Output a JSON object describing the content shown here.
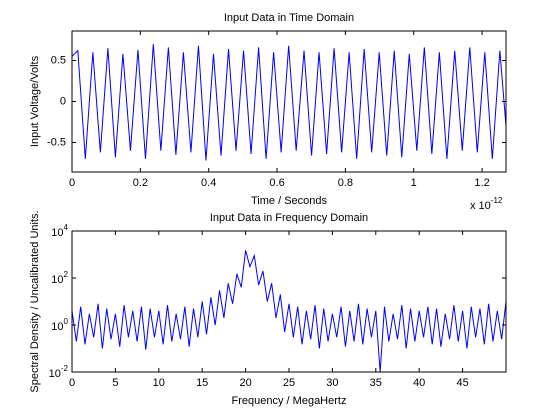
{
  "chart_data": [
    {
      "type": "line",
      "title": "Input Data in Time Domain",
      "x_label": "Time / Seconds",
      "y_label": "Input Voltage/Volts",
      "x_scale": {
        "label": "x 10",
        "exponent": "-12"
      },
      "xlim": [
        0,
        1.27
      ],
      "xticks": [
        0,
        0.2,
        0.4,
        0.6,
        0.8,
        1,
        1.2
      ],
      "ylim": [
        -0.86,
        0.86
      ],
      "yticks": [
        -0.5,
        0,
        0.5
      ],
      "series": [
        {
          "color": "#0000ff",
          "x": [
            0,
            0.017,
            0.039,
            0.061,
            0.083,
            0.105,
            0.127,
            0.149,
            0.171,
            0.193,
            0.215,
            0.238,
            0.26,
            0.282,
            0.304,
            0.326,
            0.348,
            0.37,
            0.392,
            0.414,
            0.436,
            0.458,
            0.48,
            0.502,
            0.524,
            0.546,
            0.568,
            0.59,
            0.612,
            0.634,
            0.656,
            0.679,
            0.701,
            0.723,
            0.745,
            0.767,
            0.789,
            0.811,
            0.833,
            0.855,
            0.877,
            0.899,
            0.921,
            0.943,
            0.965,
            0.987,
            1.009,
            1.031,
            1.053,
            1.075,
            1.097,
            1.12,
            1.142,
            1.164,
            1.186,
            1.208,
            1.23,
            1.252,
            1.27
          ],
          "values": [
            0.55,
            0.62,
            -0.7,
            0.6,
            -0.62,
            0.65,
            -0.68,
            0.58,
            -0.6,
            0.63,
            -0.7,
            0.7,
            -0.6,
            0.66,
            -0.65,
            0.6,
            -0.62,
            0.68,
            -0.72,
            0.58,
            -0.66,
            0.64,
            -0.6,
            0.62,
            -0.64,
            0.66,
            -0.7,
            0.6,
            -0.62,
            0.68,
            -0.6,
            0.62,
            -0.66,
            0.6,
            -0.64,
            0.65,
            -0.62,
            0.6,
            -0.7,
            0.64,
            -0.62,
            0.6,
            -0.66,
            0.62,
            -0.68,
            0.58,
            -0.6,
            0.66,
            -0.64,
            0.6,
            -0.7,
            0.62,
            -0.6,
            0.66,
            -0.62,
            0.6,
            -0.7,
            0.62,
            -0.3
          ]
        }
      ]
    },
    {
      "type": "line",
      "title": "Input Data in Frequency Domain",
      "x_label": "Frequency / MegaHertz",
      "y_label": "Spectral Density / Uncalibrated Units.",
      "yscale": "log",
      "xlim": [
        0,
        50
      ],
      "xticks": [
        0,
        5,
        10,
        15,
        20,
        25,
        30,
        35,
        40,
        45
      ],
      "ylim": [
        0.01,
        10000
      ],
      "yticks": [
        {
          "value": 0.01,
          "label": "10",
          "exponent": "-2"
        },
        {
          "value": 1,
          "label": "10",
          "exponent": "0"
        },
        {
          "value": 100,
          "label": "10",
          "exponent": "2"
        },
        {
          "value": 10000,
          "label": "10",
          "exponent": "4"
        }
      ],
      "series": [
        {
          "color": "#0000ff",
          "x": [
            0,
            0.5,
            1,
            1.5,
            2,
            2.5,
            3,
            3.5,
            4,
            4.5,
            5,
            5.5,
            6,
            6.5,
            7,
            7.5,
            8,
            8.5,
            9,
            9.5,
            10,
            10.5,
            11,
            11.5,
            12,
            12.5,
            13,
            13.5,
            14,
            14.5,
            15,
            15.5,
            16,
            16.5,
            17,
            17.5,
            18,
            18.5,
            19,
            19.5,
            20,
            20.5,
            21,
            21.5,
            22,
            22.5,
            23,
            23.5,
            24,
            24.5,
            25,
            25.5,
            26,
            26.5,
            27,
            27.5,
            28,
            28.5,
            29,
            29.5,
            30,
            30.5,
            31,
            31.5,
            32,
            32.5,
            33,
            33.5,
            34,
            34.5,
            35,
            35.5,
            36,
            36.5,
            37,
            37.5,
            38,
            38.5,
            39,
            39.5,
            40,
            40.5,
            41,
            41.5,
            42,
            42.5,
            43,
            43.5,
            44,
            44.5,
            45,
            45.5,
            46,
            46.5,
            47,
            47.5,
            48,
            48.5,
            49,
            49.5,
            50
          ],
          "values": [
            4,
            0.2,
            6,
            0.15,
            3,
            0.3,
            8,
            0.1,
            5,
            0.25,
            3,
            0.12,
            7,
            0.3,
            4,
            0.2,
            6,
            0.09,
            5,
            0.3,
            4,
            0.15,
            7,
            0.2,
            3,
            0.25,
            6,
            0.12,
            5,
            0.3,
            10,
            0.4,
            15,
            1,
            30,
            2,
            60,
            8,
            150,
            40,
            1500,
            300,
            900,
            50,
            200,
            10,
            60,
            2,
            20,
            0.5,
            8,
            0.3,
            6,
            0.15,
            4,
            0.25,
            7,
            0.1,
            5,
            0.2,
            3,
            0.3,
            6,
            0.12,
            4,
            0.2,
            8,
            0.15,
            5,
            0.3,
            4,
            0.01,
            6,
            0.2,
            3,
            0.25,
            7,
            0.1,
            5,
            0.2,
            4,
            0.3,
            6,
            0.15,
            5,
            0.12,
            3,
            0.25,
            7,
            0.2,
            4,
            0.1,
            6,
            0.3,
            5,
            0.15,
            8,
            0.2,
            4,
            0.25,
            10
          ]
        }
      ]
    }
  ]
}
